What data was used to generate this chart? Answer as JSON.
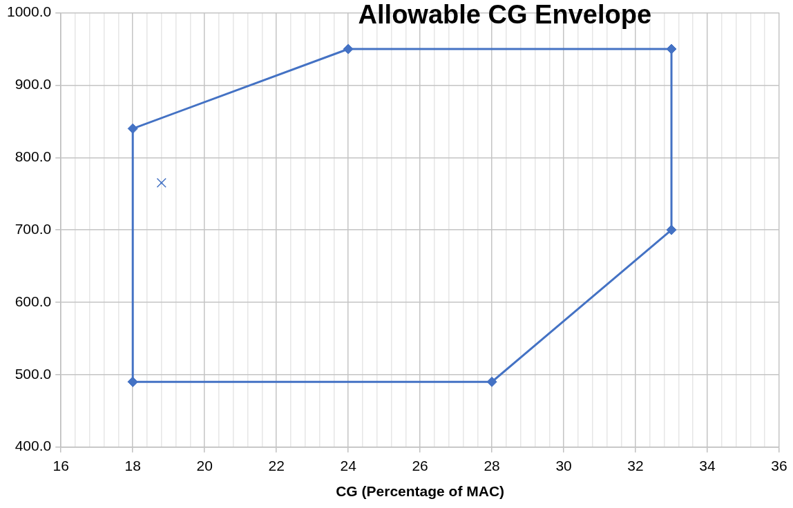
{
  "chart_data": {
    "type": "scatter",
    "title": "Allowable CG Envelope",
    "xlabel": "CG (Percentage of MAC)",
    "x": [
      18,
      18,
      24,
      33,
      33,
      28,
      18
    ],
    "series": [
      {
        "color": "#4472c4",
        "values": [
          490,
          840,
          950,
          950,
          700,
          490,
          490
        ]
      },
      {
        "type": "scatter",
        "x": [
          18.8
        ],
        "values": [
          765
        ],
        "color": "#4472c4",
        "marker": "cross"
      }
    ],
    "marker": "diamond",
    "line_style": "solid",
    "grid": true,
    "legend": false,
    "xlim": [
      16,
      36
    ],
    "xticks": [
      16,
      {
        "value": 16.4,
        "label": null
      },
      {
        "value": 16.8,
        "label": null
      },
      {
        "value": 17.2,
        "label": null
      },
      {
        "value": 17.6,
        "label": null
      },
      18,
      {
        "value": 18.4,
        "label": null
      },
      {
        "value": 18.8,
        "label": null
      },
      {
        "value": 19.2,
        "label": null
      },
      {
        "value": 19.6,
        "label": null
      },
      20,
      {
        "value": 20.4,
        "label": null
      },
      {
        "value": 20.8,
        "label": null
      },
      {
        "value": 21.2,
        "label": null
      },
      {
        "value": 21.6,
        "label": null
      },
      22,
      {
        "value": 22.4,
        "label": null
      },
      {
        "value": 22.8,
        "label": null
      },
      {
        "value": 23.2,
        "label": null
      },
      {
        "value": 23.6,
        "label": null
      },
      24,
      {
        "value": 24.4,
        "label": null
      },
      {
        "value": 24.8,
        "label": null
      },
      {
        "value": 25.2,
        "label": null
      },
      {
        "value": 25.6,
        "label": null
      },
      26,
      {
        "value": 26.4,
        "label": null
      },
      {
        "value": 26.8,
        "label": null
      },
      {
        "value": 27.2,
        "label": null
      },
      {
        "value": 27.6,
        "label": null
      },
      28,
      {
        "value": 28.4,
        "label": null
      },
      {
        "value": 28.8,
        "label": null
      },
      {
        "value": 29.2,
        "label": null
      },
      {
        "value": 29.6,
        "label": null
      },
      30,
      {
        "value": 30.4,
        "label": null
      },
      {
        "value": 30.8,
        "label": null
      },
      {
        "value": 31.2,
        "label": null
      },
      {
        "value": 31.6,
        "label": null
      },
      32,
      {
        "value": 32.4,
        "label": null
      },
      {
        "value": 32.8,
        "label": null
      },
      {
        "value": 33.2,
        "label": null
      },
      {
        "value": 33.6,
        "label": null
      },
      34,
      {
        "value": 34.4,
        "label": null
      },
      {
        "value": 34.8,
        "label": null
      },
      {
        "value": 35.2,
        "label": null
      },
      {
        "value": 35.6,
        "label": null
      },
      36
    ],
    "ylim": [
      400,
      1000
    ],
    "yticks": [
      {
        "value": 400,
        "label": "400.0"
      },
      {
        "value": 500,
        "label": "500.0"
      },
      {
        "value": 600,
        "label": "600.0"
      },
      {
        "value": 700,
        "label": "700.0"
      },
      {
        "value": 800,
        "label": "800.0"
      },
      {
        "value": 900,
        "label": "900.0"
      },
      {
        "value": 1000,
        "label": "1000.0"
      }
    ]
  }
}
